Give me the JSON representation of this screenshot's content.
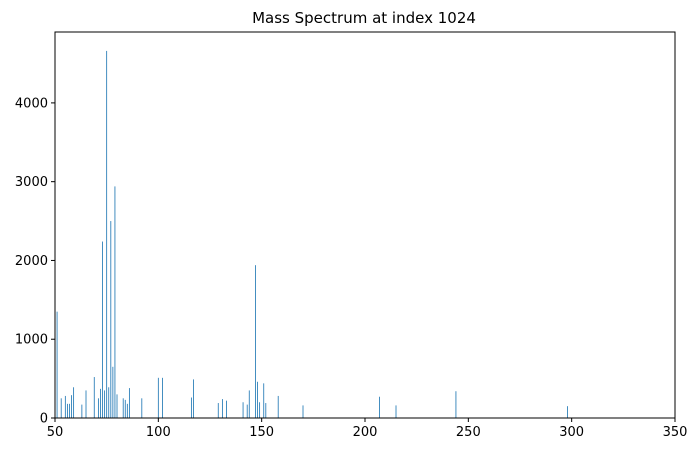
{
  "chart_data": {
    "type": "bar",
    "title": "Mass Spectrum at index 1024",
    "xlabel": "",
    "ylabel": "",
    "xlim": [
      50,
      350
    ],
    "ylim": [
      0,
      4900
    ],
    "xticks": [
      50,
      100,
      150,
      200,
      250,
      300,
      350
    ],
    "yticks": [
      0,
      1000,
      2000,
      3000,
      4000
    ],
    "grid": false,
    "bar_color": "#1f77b4",
    "x": [
      50,
      51,
      53,
      55,
      56,
      57,
      58,
      59,
      63,
      65,
      69,
      71,
      72,
      73,
      74,
      75,
      76,
      77,
      78,
      79,
      80,
      83,
      84,
      85,
      86,
      92,
      100,
      102,
      116,
      117,
      129,
      131,
      133,
      141,
      143,
      144,
      147,
      148,
      149,
      151,
      152,
      158,
      170,
      207,
      215,
      244,
      298
    ],
    "values": [
      800,
      1350,
      250,
      280,
      180,
      180,
      290,
      390,
      170,
      350,
      520,
      250,
      370,
      2240,
      350,
      4660,
      390,
      2500,
      650,
      2940,
      300,
      250,
      230,
      180,
      380,
      250,
      510,
      510,
      260,
      490,
      190,
      240,
      220,
      200,
      170,
      350,
      1940,
      460,
      200,
      440,
      190,
      280,
      160,
      270,
      160,
      340,
      150
    ]
  }
}
